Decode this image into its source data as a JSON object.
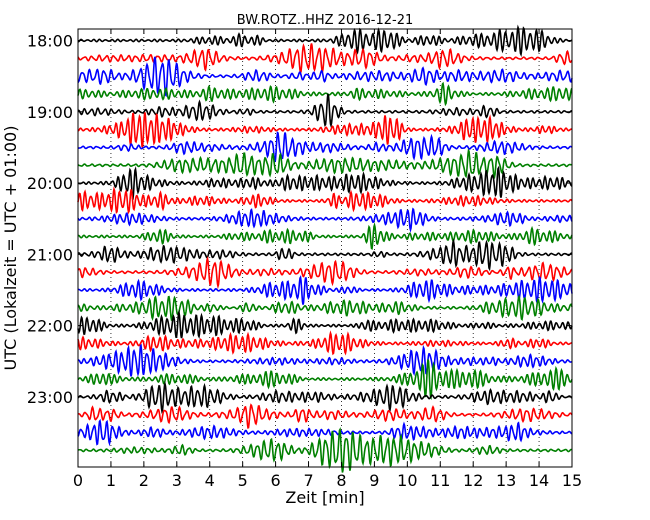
{
  "chart_data": {
    "type": "line",
    "title": "BW.ROTZ..HHZ 2016-12-21",
    "xlabel": "Zeit  [min]",
    "ylabel": "UTC (Lokalzeit = UTC + 01:00)",
    "xlim": [
      0,
      15
    ],
    "x_ticks": [
      "0",
      "1",
      "2",
      "3",
      "4",
      "5",
      "6",
      "7",
      "8",
      "9",
      "10",
      "11",
      "12",
      "13",
      "14",
      "15"
    ],
    "y_tick_labels": [
      "18:00",
      "19:00",
      "20:00",
      "21:00",
      "22:00",
      "23:00"
    ],
    "row_interval_min": 15,
    "rows": 24,
    "trace_colors": [
      "#000000",
      "#ff0000",
      "#0000ff",
      "#008000"
    ],
    "grid": "vertical dotted",
    "series": [
      {
        "start": "18:00",
        "color": "#000000"
      },
      {
        "start": "18:15",
        "color": "#ff0000"
      },
      {
        "start": "18:30",
        "color": "#0000ff"
      },
      {
        "start": "18:45",
        "color": "#008000"
      },
      {
        "start": "19:00",
        "color": "#000000"
      },
      {
        "start": "19:15",
        "color": "#ff0000"
      },
      {
        "start": "19:30",
        "color": "#0000ff"
      },
      {
        "start": "19:45",
        "color": "#008000"
      },
      {
        "start": "20:00",
        "color": "#000000"
      },
      {
        "start": "20:15",
        "color": "#ff0000"
      },
      {
        "start": "20:30",
        "color": "#0000ff"
      },
      {
        "start": "20:45",
        "color": "#008000"
      },
      {
        "start": "21:00",
        "color": "#000000"
      },
      {
        "start": "21:15",
        "color": "#ff0000"
      },
      {
        "start": "21:30",
        "color": "#0000ff"
      },
      {
        "start": "21:45",
        "color": "#008000"
      },
      {
        "start": "22:00",
        "color": "#000000"
      },
      {
        "start": "22:15",
        "color": "#ff0000"
      },
      {
        "start": "22:30",
        "color": "#0000ff"
      },
      {
        "start": "22:45",
        "color": "#008000"
      },
      {
        "start": "23:00",
        "color": "#000000"
      },
      {
        "start": "23:15",
        "color": "#ff0000"
      },
      {
        "start": "23:30",
        "color": "#0000ff"
      },
      {
        "start": "23:45",
        "color": "#008000"
      }
    ]
  }
}
